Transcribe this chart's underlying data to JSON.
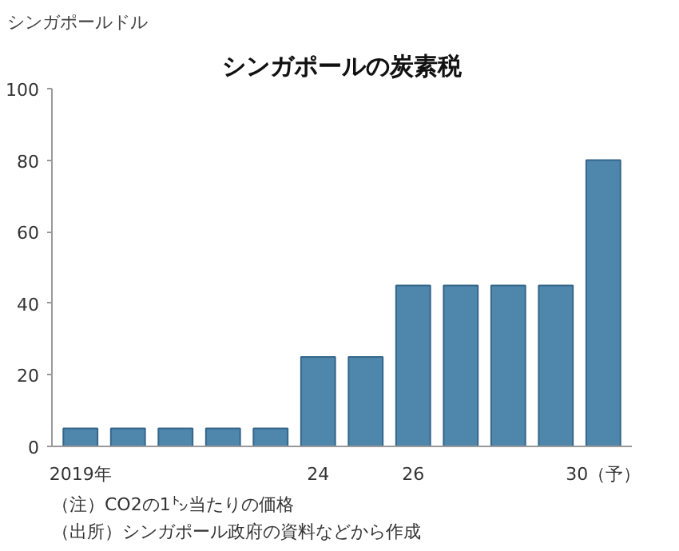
{
  "chart_data": {
    "type": "bar",
    "title": "シンガポールの炭素税",
    "ylabel": "シンガポールドル",
    "categories": [
      "2019年",
      null,
      null,
      null,
      null,
      "24",
      null,
      "26",
      null,
      null,
      null,
      "30（予）"
    ],
    "values": [
      5,
      5,
      5,
      5,
      5,
      25,
      25,
      45,
      45,
      45,
      45,
      80
    ],
    "color": "#4f86ab",
    "ylim": [
      0,
      100
    ],
    "yticks": [
      0,
      20,
      40,
      60,
      80,
      100
    ],
    "grid": false,
    "annotations": [
      "（注）CO2の1㌧当たりの価格",
      "（出所）シンガポール政府の資料などから作成"
    ]
  }
}
